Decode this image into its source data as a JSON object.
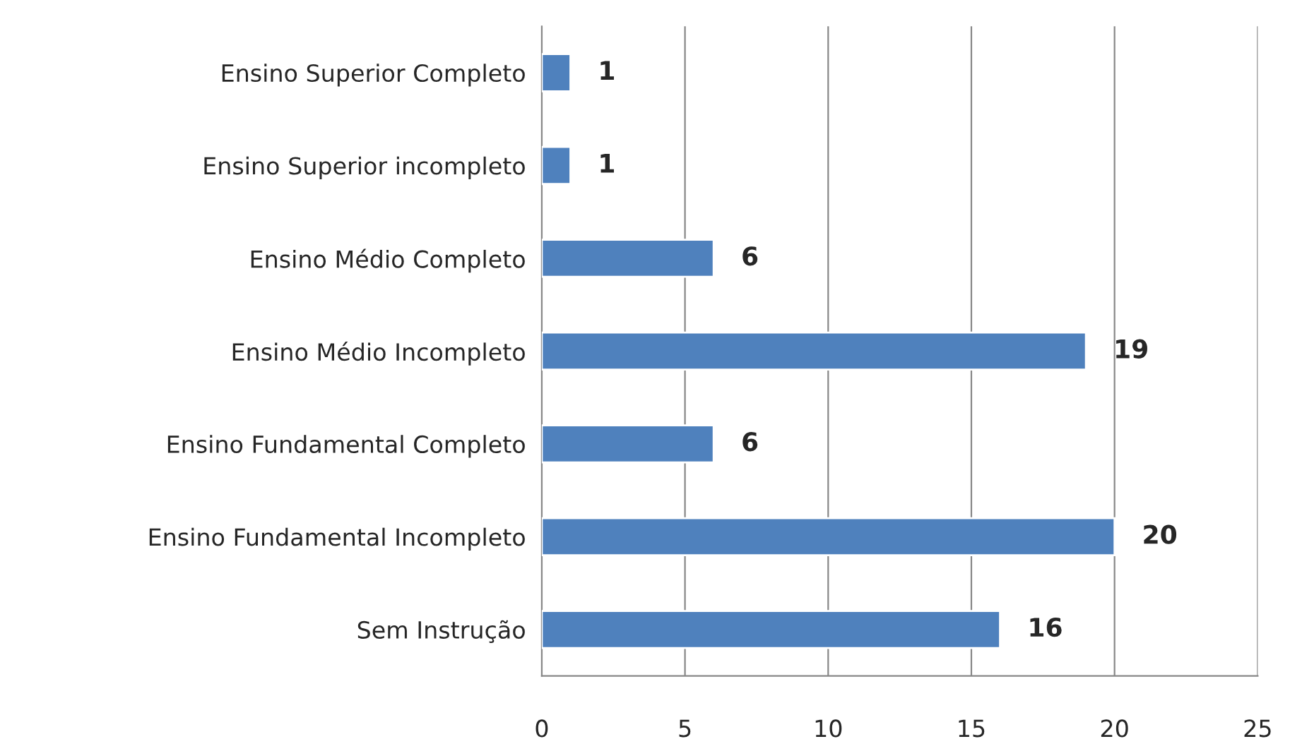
{
  "chart_data": {
    "type": "bar",
    "orientation": "horizontal",
    "categories": [
      "Ensino Superior Completo",
      "Ensino Superior incompleto",
      "Ensino Médio Completo",
      "Ensino Médio Incompleto",
      "Ensino Fundamental Completo",
      "Ensino Fundamental Incompleto",
      "Sem Instrução"
    ],
    "values": [
      1,
      1,
      6,
      19,
      6,
      20,
      16
    ],
    "color": "#4f81bd",
    "xlim": [
      0,
      25
    ],
    "xticks": [
      0,
      5,
      10,
      15,
      20,
      25
    ],
    "grid": "x",
    "data_labels": true,
    "legend": false
  }
}
